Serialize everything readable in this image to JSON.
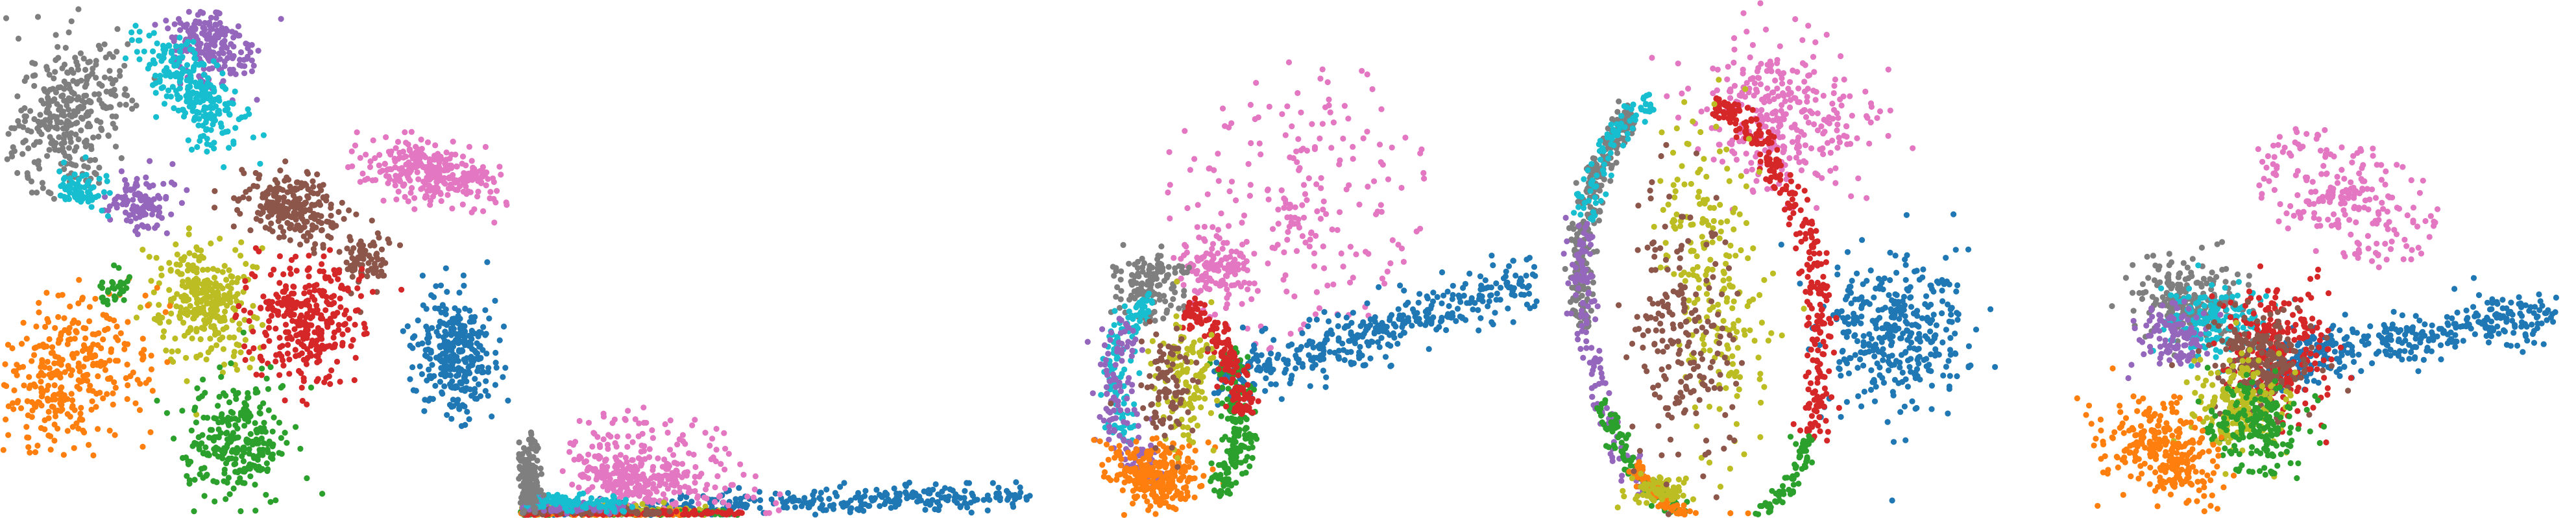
{
  "palette": {
    "c0": "#1f77b4",
    "c1": "#ff7f0e",
    "c2": "#2ca02c",
    "c3": "#d62728",
    "c4": "#9467bd",
    "c5": "#8c564b",
    "c6": "#e377c2",
    "c7": "#7f7f7f",
    "c8": "#bcbd22",
    "c9": "#17becf"
  },
  "chart_data": [
    {
      "type": "scatter",
      "title": "",
      "xlabel": "",
      "ylabel": "",
      "axes_visible": false,
      "grid": false,
      "legend": "none",
      "xlim": [
        0,
        100
      ],
      "ylim": [
        0,
        100
      ],
      "series": [
        {
          "color_key": "c7",
          "kind": "blob",
          "cx": 13,
          "cy": 77,
          "rx": 10,
          "ry": 15,
          "angle": -30,
          "n": 340
        },
        {
          "color_key": "c4",
          "kind": "blob",
          "cx": 41,
          "cy": 91,
          "rx": 9,
          "ry": 7,
          "angle": -20,
          "n": 200
        },
        {
          "color_key": "c4",
          "kind": "blob",
          "cx": 27,
          "cy": 61,
          "rx": 6,
          "ry": 5,
          "angle": 0,
          "n": 120
        },
        {
          "color_key": "c9",
          "kind": "blob",
          "cx": 38,
          "cy": 82,
          "rx": 12,
          "ry": 6,
          "angle": -50,
          "n": 260
        },
        {
          "color_key": "c9",
          "kind": "blob",
          "cx": 16,
          "cy": 64,
          "rx": 5,
          "ry": 4,
          "angle": 0,
          "n": 70
        },
        {
          "color_key": "c6",
          "kind": "blob",
          "cx": 84,
          "cy": 67,
          "rx": 13,
          "ry": 6,
          "angle": -10,
          "n": 300
        },
        {
          "color_key": "c5",
          "kind": "blob",
          "cx": 57,
          "cy": 60,
          "rx": 10,
          "ry": 7,
          "angle": -15,
          "n": 240
        },
        {
          "color_key": "c5",
          "kind": "blob",
          "cx": 71,
          "cy": 50,
          "rx": 5,
          "ry": 5,
          "angle": 0,
          "n": 80
        },
        {
          "color_key": "c8",
          "kind": "blob",
          "cx": 40,
          "cy": 42,
          "rx": 9,
          "ry": 11,
          "angle": 0,
          "n": 300
        },
        {
          "color_key": "c3",
          "kind": "blob",
          "cx": 60,
          "cy": 38,
          "rx": 11,
          "ry": 12,
          "angle": 0,
          "n": 320
        },
        {
          "color_key": "c1",
          "kind": "blob",
          "cx": 14,
          "cy": 28,
          "rx": 13,
          "ry": 16,
          "angle": -45,
          "n": 330
        },
        {
          "color_key": "c2",
          "kind": "blob",
          "cx": 46,
          "cy": 15,
          "rx": 10,
          "ry": 11,
          "angle": 0,
          "n": 280
        },
        {
          "color_key": "c2",
          "kind": "blob",
          "cx": 22,
          "cy": 44,
          "rx": 3,
          "ry": 3,
          "angle": 0,
          "n": 30
        },
        {
          "color_key": "c0",
          "kind": "blob",
          "cx": 89,
          "cy": 31,
          "rx": 8,
          "ry": 12,
          "angle": 10,
          "n": 300
        }
      ]
    },
    {
      "type": "scatter",
      "title": "",
      "xlabel": "",
      "ylabel": "",
      "axes_visible": false,
      "grid": false,
      "legend": "none",
      "xlim": [
        0,
        100
      ],
      "ylim": [
        0,
        100
      ],
      "series": [
        {
          "color_key": "c0",
          "kind": "band",
          "x0": 5,
          "x1": 98,
          "y0": 0.8,
          "y1": 4.5,
          "spread": 2.2,
          "n": 420
        },
        {
          "color_key": "c6",
          "kind": "fan",
          "cx": 30,
          "cy": 8,
          "rx": 22,
          "ry": 12,
          "angle": -20,
          "n": 260
        },
        {
          "color_key": "c6",
          "kind": "blob",
          "cx": 20,
          "cy": 8,
          "rx": 9,
          "ry": 5,
          "angle": -15,
          "n": 150
        },
        {
          "color_key": "c8",
          "kind": "band",
          "x0": 1,
          "x1": 40,
          "y0": 1.8,
          "y1": 1.0,
          "spread": 1.2,
          "n": 160
        },
        {
          "color_key": "c2",
          "kind": "band",
          "x0": 1,
          "x1": 42,
          "y0": 0.9,
          "y1": 0.6,
          "spread": 0.6,
          "n": 200
        },
        {
          "color_key": "c1",
          "kind": "band",
          "x0": 1,
          "x1": 33,
          "y0": 0.7,
          "y1": 0.5,
          "spread": 0.5,
          "n": 180
        },
        {
          "color_key": "c3",
          "kind": "band",
          "x0": 2,
          "x1": 44,
          "y0": 1.0,
          "y1": 0.7,
          "spread": 0.6,
          "n": 160
        },
        {
          "color_key": "c5",
          "kind": "band",
          "x0": 2,
          "x1": 28,
          "y0": 1.8,
          "y1": 1.0,
          "spread": 0.9,
          "n": 90
        },
        {
          "color_key": "c4",
          "kind": "band",
          "x0": 2,
          "x1": 20,
          "y0": 2.6,
          "y1": 1.8,
          "spread": 1.1,
          "n": 100
        },
        {
          "color_key": "c9",
          "kind": "band",
          "x0": 2,
          "x1": 22,
          "y0": 3.5,
          "y1": 2.5,
          "spread": 1.4,
          "n": 100
        },
        {
          "color_key": "c7",
          "kind": "blob",
          "cx": 2.5,
          "cy": 7,
          "rx": 2.5,
          "ry": 8,
          "angle": 0,
          "n": 170
        }
      ]
    },
    {
      "type": "scatter",
      "title": "",
      "xlabel": "",
      "ylabel": "",
      "axes_visible": false,
      "grid": false,
      "legend": "none",
      "xlim": [
        0,
        100
      ],
      "ylim": [
        0,
        100
      ],
      "series": [
        {
          "color_key": "c6",
          "kind": "fan",
          "cx": 50,
          "cy": 60,
          "rx": 26,
          "ry": 30,
          "angle": -40,
          "n": 230
        },
        {
          "color_key": "c6",
          "kind": "blob",
          "cx": 36,
          "cy": 48,
          "rx": 7,
          "ry": 6,
          "angle": 0,
          "n": 110
        },
        {
          "color_key": "c0",
          "kind": "band",
          "x0": 36,
          "x1": 98,
          "y0": 26,
          "y1": 46,
          "spread": 5,
          "n": 400
        },
        {
          "color_key": "c7",
          "kind": "blob",
          "cx": 22,
          "cy": 44,
          "rx": 7,
          "ry": 8,
          "angle": -30,
          "n": 130
        },
        {
          "color_key": "c9",
          "kind": "ring",
          "cx": 28,
          "cy": 23,
          "rx": 12,
          "ry": 19,
          "angle": 15,
          "width": 3,
          "arc0": 90,
          "arc1": 200,
          "n": 130
        },
        {
          "color_key": "c4",
          "kind": "ring",
          "cx": 28,
          "cy": 23,
          "rx": 12,
          "ry": 19,
          "angle": 15,
          "width": 4,
          "arc0": 120,
          "arc1": 230,
          "n": 130
        },
        {
          "color_key": "c1",
          "kind": "blob",
          "cx": 23,
          "cy": 8,
          "rx": 9,
          "ry": 6,
          "angle": -10,
          "n": 270
        },
        {
          "color_key": "c2",
          "kind": "ring",
          "cx": 28,
          "cy": 23,
          "rx": 12,
          "ry": 19,
          "angle": 15,
          "width": 3,
          "arc0": -80,
          "arc1": 20,
          "n": 180
        },
        {
          "color_key": "c3",
          "kind": "ring",
          "cx": 28,
          "cy": 23,
          "rx": 12,
          "ry": 19,
          "angle": 15,
          "width": 3,
          "arc0": -20,
          "arc1": 60,
          "n": 160
        },
        {
          "color_key": "c8",
          "kind": "blob",
          "cx": 29,
          "cy": 27,
          "rx": 6,
          "ry": 12,
          "angle": 0,
          "n": 120
        },
        {
          "color_key": "c5",
          "kind": "blob",
          "cx": 26,
          "cy": 24,
          "rx": 5,
          "ry": 10,
          "angle": 0,
          "n": 90
        }
      ]
    },
    {
      "type": "scatter",
      "title": "",
      "xlabel": "",
      "ylabel": "",
      "axes_visible": false,
      "grid": false,
      "legend": "none",
      "xlim": [
        0,
        100
      ],
      "ylim": [
        0,
        100
      ],
      "series": [
        {
          "color_key": "c6",
          "kind": "blob",
          "cx": 46,
          "cy": 77,
          "rx": 16,
          "ry": 14,
          "angle": -20,
          "n": 330
        },
        {
          "color_key": "c0",
          "kind": "blob",
          "cx": 68,
          "cy": 36,
          "rx": 14,
          "ry": 15,
          "angle": 10,
          "n": 360
        },
        {
          "color_key": "c7",
          "kind": "ring",
          "cx": 30,
          "cy": 40,
          "rx": 23,
          "ry": 42,
          "angle": 8,
          "width": 2.5,
          "arc0": 110,
          "arc1": 180,
          "n": 260
        },
        {
          "color_key": "c9",
          "kind": "ring",
          "cx": 30,
          "cy": 40,
          "rx": 23,
          "ry": 42,
          "angle": 8,
          "width": 3,
          "arc0": 100,
          "arc1": 150,
          "n": 90
        },
        {
          "color_key": "c4",
          "kind": "ring",
          "cx": 30,
          "cy": 40,
          "rx": 23,
          "ry": 42,
          "angle": 8,
          "width": 3,
          "arc0": 150,
          "arc1": 230,
          "n": 150
        },
        {
          "color_key": "c3",
          "kind": "ring",
          "cx": 30,
          "cy": 40,
          "rx": 23,
          "ry": 42,
          "angle": 8,
          "width": 3,
          "arc0": -40,
          "arc1": 70,
          "n": 300
        },
        {
          "color_key": "c2",
          "kind": "ring",
          "cx": 30,
          "cy": 40,
          "rx": 23,
          "ry": 42,
          "angle": 8,
          "width": 2,
          "arc0": 200,
          "arc1": 320,
          "n": 230
        },
        {
          "color_key": "c1",
          "kind": "ring",
          "cx": 30,
          "cy": 40,
          "rx": 23,
          "ry": 42,
          "angle": 8,
          "width": 1.6,
          "arc0": 220,
          "arc1": 280,
          "n": 170
        },
        {
          "color_key": "c8",
          "kind": "blob",
          "cx": 33,
          "cy": 45,
          "rx": 10,
          "ry": 30,
          "angle": 5,
          "n": 220
        },
        {
          "color_key": "c8",
          "kind": "blob",
          "cx": 22,
          "cy": 5,
          "rx": 6,
          "ry": 3,
          "angle": 0,
          "n": 70
        },
        {
          "color_key": "c5",
          "kind": "blob",
          "cx": 26,
          "cy": 35,
          "rx": 10,
          "ry": 28,
          "angle": 5,
          "n": 200
        }
      ]
    },
    {
      "type": "scatter",
      "title": "",
      "xlabel": "",
      "ylabel": "",
      "axes_visible": false,
      "grid": false,
      "legend": "none",
      "xlim": [
        0,
        100
      ],
      "ylim": [
        0,
        100
      ],
      "series": [
        {
          "color_key": "c6",
          "kind": "fan",
          "cx": 55,
          "cy": 62,
          "rx": 20,
          "ry": 12,
          "angle": -25,
          "n": 220
        },
        {
          "color_key": "c0",
          "kind": "band",
          "x0": 40,
          "x1": 96,
          "y0": 30,
          "y1": 40,
          "spread": 4,
          "n": 380
        },
        {
          "color_key": "c7",
          "kind": "blob",
          "cx": 26,
          "cy": 42,
          "rx": 12,
          "ry": 8,
          "angle": -10,
          "n": 220
        },
        {
          "color_key": "c9",
          "kind": "blob",
          "cx": 30,
          "cy": 38,
          "rx": 10,
          "ry": 7,
          "angle": 0,
          "n": 160
        },
        {
          "color_key": "c4",
          "kind": "blob",
          "cx": 22,
          "cy": 35,
          "rx": 7,
          "ry": 6,
          "angle": 0,
          "n": 110
        },
        {
          "color_key": "c3",
          "kind": "blob",
          "cx": 42,
          "cy": 32,
          "rx": 10,
          "ry": 12,
          "angle": 0,
          "n": 280
        },
        {
          "color_key": "c5",
          "kind": "blob",
          "cx": 39,
          "cy": 30,
          "rx": 9,
          "ry": 10,
          "angle": 0,
          "n": 200
        },
        {
          "color_key": "c8",
          "kind": "blob",
          "cx": 35,
          "cy": 22,
          "rx": 9,
          "ry": 10,
          "angle": 0,
          "n": 210
        },
        {
          "color_key": "c2",
          "kind": "blob",
          "cx": 38,
          "cy": 18,
          "rx": 10,
          "ry": 8,
          "angle": -15,
          "n": 190
        },
        {
          "color_key": "c1",
          "kind": "blob",
          "cx": 20,
          "cy": 13,
          "rx": 12,
          "ry": 8,
          "angle": -30,
          "n": 280
        }
      ]
    }
  ]
}
